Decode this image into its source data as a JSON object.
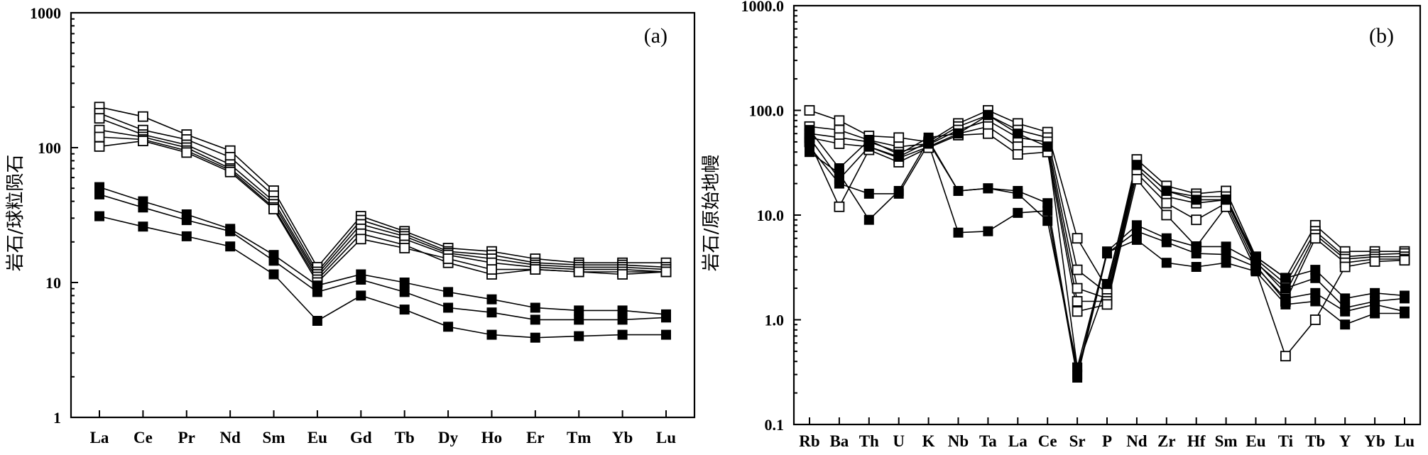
{
  "chart_data": [
    {
      "type": "line",
      "panel_label": "(a)",
      "ylabel": "岩石/球粒陨石",
      "yscale": "log",
      "ylim": [
        1,
        1000
      ],
      "ytick_values": [
        1,
        10,
        100,
        1000
      ],
      "ytick_labels": [
        "1",
        "10",
        "100",
        "1000"
      ],
      "categories": [
        "La",
        "Ce",
        "Pr",
        "Nd",
        "Sm",
        "Eu",
        "Gd",
        "Tb",
        "Dy",
        "Ho",
        "Er",
        "Tm",
        "Yb",
        "Lu"
      ],
      "series": [
        {
          "name": "open-1",
          "marker": "open",
          "values": [
            200,
            170,
            125,
            95,
            48,
            13,
            31,
            24,
            18,
            17,
            15,
            14,
            14,
            14
          ]
        },
        {
          "name": "open-2",
          "marker": "open",
          "values": [
            180,
            135,
            115,
            85,
            44,
            12,
            29,
            23,
            17,
            16,
            14,
            13.5,
            13.5,
            13
          ]
        },
        {
          "name": "open-3",
          "marker": "open",
          "values": [
            165,
            125,
            105,
            75,
            40,
            11.5,
            27,
            22,
            16.5,
            15,
            13.5,
            13,
            13,
            12.5
          ]
        },
        {
          "name": "open-4",
          "marker": "open",
          "values": [
            135,
            120,
            100,
            70,
            38,
            11,
            25,
            21,
            16,
            14,
            13,
            12.5,
            12.5,
            12
          ]
        },
        {
          "name": "open-5",
          "marker": "open",
          "values": [
            120,
            115,
            95,
            68,
            36,
            10.5,
            23,
            19,
            14,
            11.5,
            12.5,
            12,
            12,
            12
          ]
        },
        {
          "name": "open-6",
          "marker": "open",
          "values": [
            102,
            112,
            92,
            66,
            35,
            10,
            21,
            18,
            15,
            12.5,
            12.5,
            12,
            11.5,
            12
          ]
        },
        {
          "name": "filled-1",
          "marker": "filled",
          "values": [
            51,
            40,
            32,
            25,
            16,
            9.5,
            11.5,
            10,
            8.5,
            7.5,
            6.5,
            6.2,
            6.2,
            5.8
          ]
        },
        {
          "name": "filled-2",
          "marker": "filled",
          "values": [
            45,
            36,
            29,
            24,
            14.5,
            8.5,
            10.5,
            8.5,
            6.5,
            6.0,
            5.3,
            5.3,
            5.3,
            5.5
          ]
        },
        {
          "name": "filled-3",
          "marker": "filled",
          "values": [
            31,
            26,
            22,
            18.5,
            11.5,
            5.2,
            8.0,
            6.3,
            4.7,
            4.1,
            3.9,
            4.0,
            4.1,
            4.1
          ]
        }
      ]
    },
    {
      "type": "line",
      "panel_label": "(b)",
      "ylabel": "岩石/原始地幔",
      "yscale": "log",
      "ylim": [
        0.1,
        1000
      ],
      "ytick_values": [
        0.1,
        1,
        10,
        100,
        1000
      ],
      "ytick_labels": [
        "0.1",
        "1.0",
        "10.0",
        "100.0",
        "1000.0"
      ],
      "categories": [
        "Rb",
        "Ba",
        "Th",
        "U",
        "K",
        "Nb",
        "Ta",
        "La",
        "Ce",
        "Sr",
        "P",
        "Nd",
        "Zr",
        "Hf",
        "Sm",
        "Eu",
        "Ti",
        "Tb",
        "Y",
        "Yb",
        "Lu"
      ],
      "series": [
        {
          "name": "open-1",
          "marker": "open",
          "values": [
            100,
            80,
            57,
            55,
            50,
            75,
            100,
            75,
            62,
            6.0,
            2.0,
            34,
            19,
            16,
            17,
            4.0,
            2.5,
            8.0,
            4.5,
            4.5,
            4.5
          ]
        },
        {
          "name": "open-2",
          "marker": "open",
          "values": [
            70,
            65,
            52,
            45,
            48,
            70,
            90,
            65,
            55,
            3.0,
            1.8,
            30,
            17,
            15,
            15,
            3.8,
            2.2,
            7.0,
            4.0,
            4.2,
            4.3
          ]
        },
        {
          "name": "open-3",
          "marker": "open",
          "values": [
            60,
            55,
            50,
            40,
            47,
            65,
            80,
            55,
            50,
            2.0,
            1.6,
            28,
            15,
            13,
            14,
            3.6,
            1.8,
            6.5,
            3.8,
            4.0,
            4.0
          ]
        },
        {
          "name": "open-4",
          "marker": "open",
          "values": [
            55,
            48,
            45,
            35,
            45,
            60,
            70,
            45,
            45,
            1.5,
            1.5,
            25,
            13,
            9.0,
            13,
            3.3,
            1.5,
            6.0,
            3.5,
            3.8,
            3.8
          ]
        },
        {
          "name": "open-5",
          "marker": "open",
          "values": [
            50,
            12,
            42,
            32,
            44,
            58,
            60,
            38,
            40,
            1.2,
            1.4,
            22,
            10,
            5.0,
            12,
            3.0,
            0.45,
            1.0,
            3.2,
            3.6,
            3.7
          ]
        },
        {
          "name": "filled-1",
          "marker": "filled",
          "values": [
            65,
            28,
            52,
            38,
            55,
            60,
            90,
            60,
            45,
            0.35,
            2.2,
            30,
            17,
            14,
            14,
            4.0,
            2.5,
            3.0,
            1.6,
            1.8,
            1.7
          ]
        },
        {
          "name": "filled-2",
          "marker": "filled",
          "values": [
            55,
            22,
            45,
            36,
            50,
            17,
            18,
            17,
            13,
            0.3,
            4.5,
            8.0,
            6.0,
            5.0,
            5.0,
            3.5,
            2.0,
            2.5,
            1.3,
            1.5,
            1.6
          ]
        },
        {
          "name": "filled-3",
          "marker": "filled",
          "values": [
            45,
            20,
            16,
            16,
            48,
            6.8,
            7.0,
            10.5,
            11,
            0.28,
            4.3,
            7.0,
            5.5,
            4.3,
            4.2,
            3.2,
            1.6,
            1.8,
            1.2,
            1.4,
            1.2
          ]
        },
        {
          "name": "filled-4",
          "marker": "filled",
          "values": [
            40,
            25,
            9.0,
            17,
            52,
            17,
            18,
            16,
            8.8,
            0.35,
            4.4,
            5.8,
            3.5,
            3.2,
            3.5,
            2.9,
            1.4,
            1.5,
            0.9,
            1.15,
            1.15
          ]
        }
      ]
    }
  ]
}
